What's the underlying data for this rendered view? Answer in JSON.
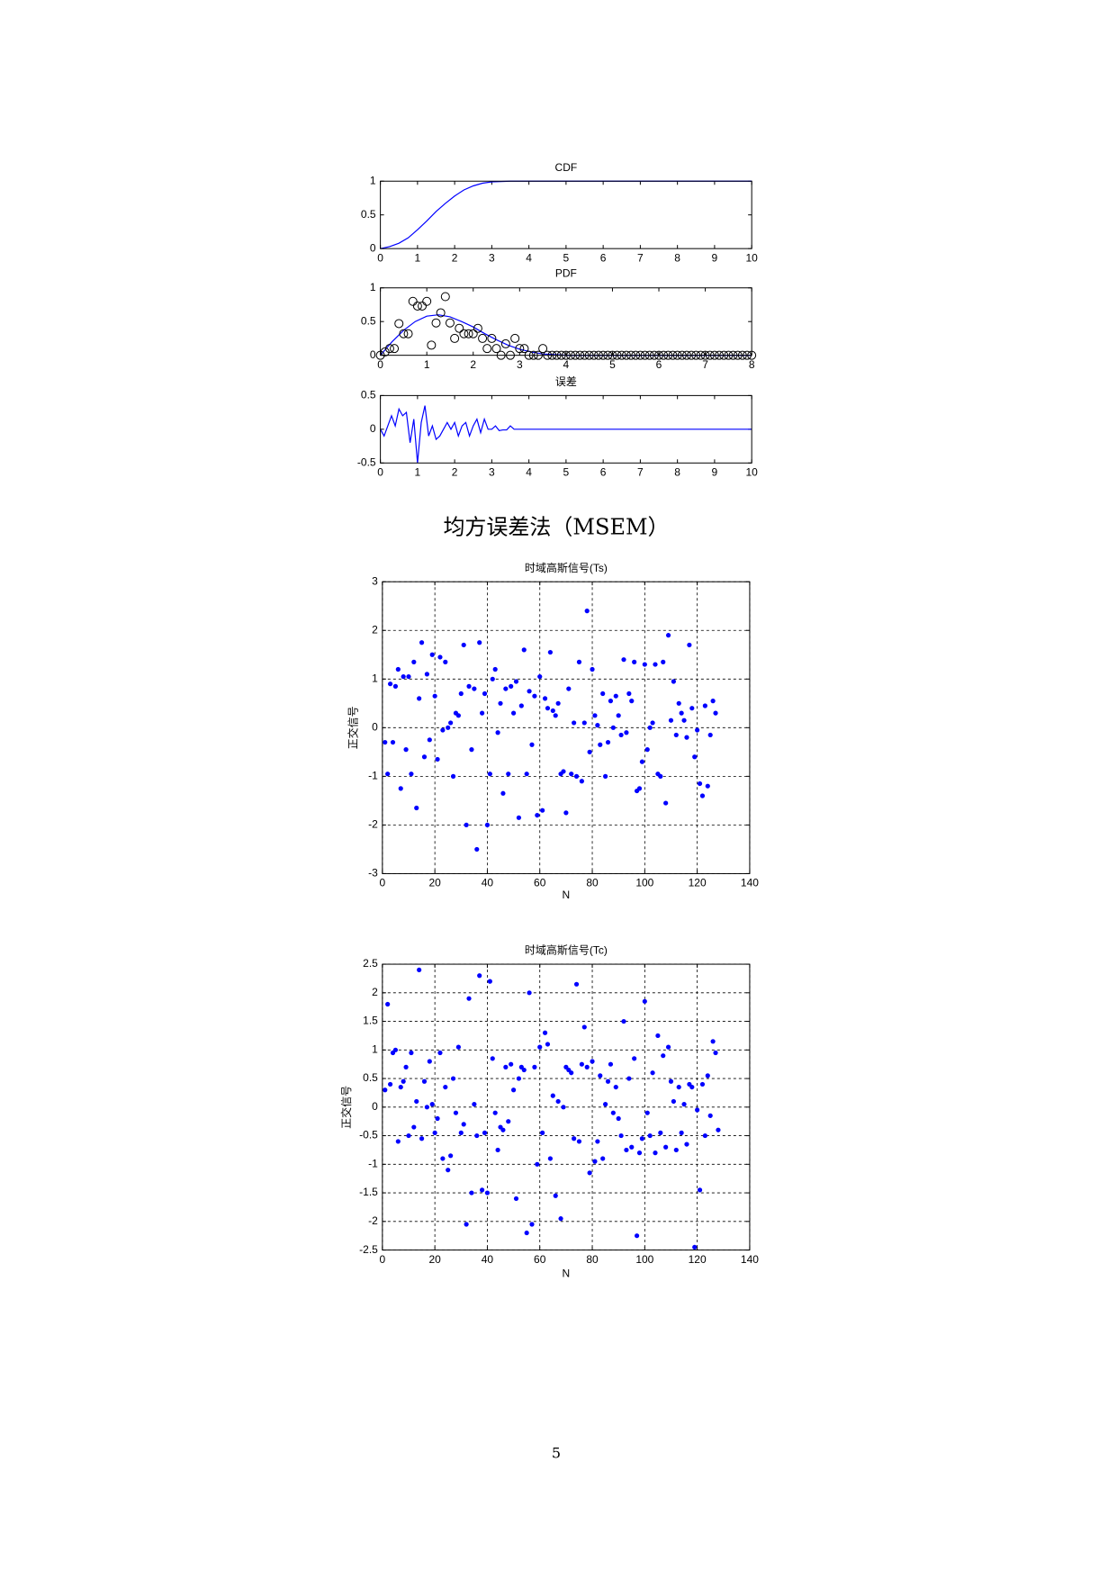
{
  "chart_data": [
    {
      "type": "line",
      "title": "CDF",
      "color": "#0000ff",
      "x": [
        0,
        0.25,
        0.5,
        0.75,
        1,
        1.25,
        1.5,
        1.75,
        2,
        2.25,
        2.5,
        2.75,
        3,
        3.5,
        10
      ],
      "values": [
        0,
        0.03,
        0.08,
        0.16,
        0.28,
        0.41,
        0.55,
        0.67,
        0.78,
        0.87,
        0.93,
        0.97,
        0.99,
        1,
        1
      ],
      "xlim": [
        0,
        10
      ],
      "xticks": [
        0,
        1,
        2,
        3,
        4,
        5,
        6,
        7,
        8,
        9,
        10
      ],
      "ylim": [
        0,
        1
      ],
      "yticks": [
        0,
        0.5,
        1
      ],
      "grid": false
    },
    {
      "type": "line",
      "title": "PDF",
      "color": "#0000ff",
      "x": [
        0,
        0.25,
        0.5,
        0.75,
        1,
        1.25,
        1.5,
        1.75,
        2,
        2.25,
        2.5,
        2.75,
        3,
        3.25,
        3.5,
        4,
        8
      ],
      "values": [
        0,
        0.2,
        0.37,
        0.5,
        0.58,
        0.6,
        0.57,
        0.5,
        0.42,
        0.32,
        0.23,
        0.15,
        0.09,
        0.05,
        0.02,
        0,
        0
      ],
      "points": {
        "color": "#000000",
        "x": [
          0,
          0.1,
          0.2,
          0.3,
          0.4,
          0.5,
          0.6,
          0.7,
          0.8,
          0.9,
          1,
          1.1,
          1.2,
          1.3,
          1.4,
          1.5,
          1.6,
          1.7,
          1.8,
          1.9,
          2,
          2.1,
          2.2,
          2.3,
          2.4,
          2.5,
          2.6,
          2.7,
          2.8,
          2.9,
          3,
          3.1,
          3.2,
          3.3,
          3.4,
          3.5,
          3.6,
          3.7,
          3.8,
          3.9,
          4,
          4.1,
          4.2,
          4.3,
          4.4,
          4.5,
          4.6,
          4.7,
          4.8,
          4.9,
          5,
          5.1,
          5.2,
          5.3,
          5.4,
          5.5,
          5.6,
          5.7,
          5.8,
          5.9,
          6,
          6.1,
          6.2,
          6.3,
          6.4,
          6.5,
          6.6,
          6.7,
          6.8,
          6.9,
          7,
          7.1,
          7.2,
          7.3,
          7.4,
          7.5,
          7.6,
          7.7,
          7.8,
          7.9,
          8
        ],
        "values": [
          0,
          0.05,
          0.1,
          0.1,
          0.47,
          0.32,
          0.32,
          0.8,
          0.73,
          0.73,
          0.8,
          0.15,
          0.48,
          0.63,
          0.87,
          0.48,
          0.25,
          0.4,
          0.32,
          0.32,
          0.32,
          0.4,
          0.25,
          0.1,
          0.25,
          0.1,
          0,
          0.17,
          0,
          0.25,
          0.1,
          0.1,
          0,
          0,
          0,
          0.1,
          0,
          0,
          0,
          0,
          0,
          0,
          0,
          0,
          0,
          0,
          0,
          0,
          0,
          0,
          0,
          0,
          0,
          0,
          0,
          0,
          0,
          0,
          0,
          0,
          0,
          0,
          0,
          0,
          0,
          0,
          0,
          0,
          0,
          0,
          0,
          0,
          0,
          0,
          0,
          0,
          0,
          0,
          0,
          0,
          0
        ]
      },
      "xlim": [
        0,
        8
      ],
      "xticks": [
        0,
        1,
        2,
        3,
        4,
        5,
        6,
        7,
        8
      ],
      "ylim": [
        0,
        1
      ],
      "yticks": [
        0,
        0.5,
        1
      ],
      "grid": false
    },
    {
      "type": "line",
      "title": "误差",
      "color": "#0000ff",
      "x": [
        0,
        0.1,
        0.2,
        0.3,
        0.4,
        0.5,
        0.6,
        0.7,
        0.8,
        0.9,
        1,
        1.1,
        1.2,
        1.3,
        1.4,
        1.5,
        1.6,
        1.7,
        1.8,
        1.9,
        2,
        2.1,
        2.2,
        2.3,
        2.4,
        2.5,
        2.6,
        2.7,
        2.8,
        2.9,
        3,
        3.1,
        3.2,
        3.3,
        3.4,
        3.5,
        3.6,
        10
      ],
      "values": [
        0,
        -0.1,
        0.05,
        0.2,
        0.05,
        0.3,
        0.2,
        0.25,
        -0.2,
        0.15,
        -0.5,
        0.1,
        0.35,
        -0.1,
        0.05,
        -0.15,
        -0.1,
        0,
        0.1,
        0,
        0.1,
        -0.1,
        0.05,
        0.1,
        -0.1,
        0.05,
        0.15,
        -0.05,
        0.15,
        0,
        0,
        0.05,
        -0.02,
        -0.01,
        -0.01,
        0.05,
        0,
        0
      ],
      "xlim": [
        0,
        10
      ],
      "xticks": [
        0,
        1,
        2,
        3,
        4,
        5,
        6,
        7,
        8,
        9,
        10
      ],
      "ylim": [
        -0.5,
        0.5
      ],
      "yticks": [
        -0.5,
        0,
        0.5
      ],
      "grid": false
    },
    {
      "type": "scatter",
      "title": "时域高斯信号(Ts)",
      "x_label": "N",
      "y_label": "正交信号",
      "color": "#0000ff",
      "x": [
        1,
        2,
        3,
        4,
        5,
        6,
        7,
        8,
        9,
        10,
        11,
        12,
        13,
        14,
        15,
        16,
        17,
        18,
        19,
        20,
        21,
        22,
        23,
        24,
        25,
        26,
        27,
        28,
        29,
        30,
        31,
        32,
        33,
        34,
        35,
        36,
        37,
        38,
        39,
        40,
        41,
        42,
        43,
        44,
        45,
        46,
        47,
        48,
        49,
        50,
        51,
        52,
        53,
        54,
        55,
        56,
        57,
        58,
        59,
        60,
        61,
        62,
        63,
        64,
        65,
        66,
        67,
        68,
        69,
        70,
        71,
        72,
        73,
        74,
        75,
        76,
        77,
        78,
        79,
        80,
        81,
        82,
        83,
        84,
        85,
        86,
        87,
        88,
        89,
        90,
        91,
        92,
        93,
        94,
        95,
        96,
        97,
        98,
        99,
        100,
        101,
        102,
        103,
        104,
        105,
        106,
        107,
        108,
        109,
        110,
        111,
        112,
        113,
        114,
        115,
        116,
        117,
        118,
        119,
        120,
        121,
        122,
        123,
        124,
        125,
        126,
        127
      ],
      "values": [
        -0.3,
        -0.95,
        0.9,
        -0.3,
        0.85,
        1.2,
        -1.25,
        1.05,
        -0.45,
        1.05,
        -0.95,
        1.35,
        -1.65,
        0.6,
        1.75,
        -0.6,
        1.1,
        -0.25,
        1.5,
        0.65,
        -0.65,
        1.45,
        -0.05,
        1.35,
        0,
        0.1,
        -1,
        0.3,
        0.25,
        0.7,
        1.7,
        -2,
        0.85,
        -0.45,
        0.8,
        -2.5,
        1.75,
        0.3,
        0.7,
        -2,
        -0.95,
        1,
        1.2,
        -0.1,
        0.5,
        -1.35,
        0.8,
        -0.95,
        0.85,
        0.3,
        0.95,
        -1.85,
        0.45,
        1.6,
        -0.95,
        0.75,
        -0.35,
        0.65,
        -1.8,
        1.05,
        -1.7,
        0.6,
        0.4,
        1.55,
        0.35,
        0.25,
        0.5,
        -0.95,
        -0.9,
        -1.75,
        0.8,
        -0.95,
        0.1,
        -1,
        1.35,
        -1.1,
        0.1,
        2.4,
        -0.5,
        1.2,
        0.25,
        0.05,
        -0.35,
        0.7,
        -1,
        -0.3,
        0.55,
        0,
        0.65,
        0.25,
        -0.15,
        1.4,
        -0.1,
        0.7,
        0.55,
        1.35,
        -1.3,
        -1.25,
        -0.7,
        1.3,
        -0.45,
        0,
        0.1,
        1.3,
        -0.95,
        -1,
        1.35,
        -1.55,
        1.9,
        0.15,
        0.95,
        -0.15,
        0.5,
        0.3,
        0.15,
        -0.2,
        1.7,
        0.4,
        -0.6,
        -0.05,
        -1.15,
        -1.4,
        0.45,
        -1.2,
        -0.15,
        0.55,
        0.3
      ],
      "xlim": [
        0,
        140
      ],
      "xticks": [
        0,
        20,
        40,
        60,
        80,
        100,
        120,
        140
      ],
      "ylim": [
        -3,
        3
      ],
      "yticks": [
        -3,
        -2,
        -1,
        0,
        1,
        2,
        3
      ],
      "grid": true
    },
    {
      "type": "scatter",
      "title": "时域高斯信号(Tc)",
      "x_label": "N",
      "y_label": "正交信号",
      "color": "#0000ff",
      "x": [
        1,
        2,
        3,
        4,
        5,
        6,
        7,
        8,
        9,
        10,
        11,
        12,
        13,
        14,
        15,
        16,
        17,
        18,
        19,
        20,
        21,
        22,
        23,
        24,
        25,
        26,
        27,
        28,
        29,
        30,
        31,
        32,
        33,
        34,
        35,
        36,
        37,
        38,
        39,
        40,
        41,
        42,
        43,
        44,
        45,
        46,
        47,
        48,
        49,
        50,
        51,
        52,
        53,
        54,
        55,
        56,
        57,
        58,
        59,
        60,
        61,
        62,
        63,
        64,
        65,
        66,
        67,
        68,
        69,
        70,
        71,
        72,
        73,
        74,
        75,
        76,
        77,
        78,
        79,
        80,
        81,
        82,
        83,
        84,
        85,
        86,
        87,
        88,
        89,
        90,
        91,
        92,
        93,
        94,
        95,
        96,
        97,
        98,
        99,
        100,
        101,
        102,
        103,
        104,
        105,
        106,
        107,
        108,
        109,
        110,
        111,
        112,
        113,
        114,
        115,
        116,
        117,
        118,
        119,
        120,
        121,
        122,
        123,
        124,
        125,
        126,
        127,
        128
      ],
      "values": [
        0.3,
        1.8,
        0.4,
        0.95,
        1,
        -0.6,
        0.35,
        0.45,
        0.7,
        -0.5,
        0.95,
        -0.35,
        0.1,
        2.4,
        -0.55,
        0.45,
        0,
        0.8,
        0.05,
        -0.45,
        -0.2,
        0.95,
        -0.9,
        0.35,
        -1.1,
        -0.85,
        0.5,
        -0.1,
        1.05,
        -0.45,
        -0.3,
        -2.05,
        1.9,
        -1.5,
        0.05,
        -0.5,
        2.3,
        -1.45,
        -0.45,
        -1.5,
        2.2,
        0.85,
        -0.1,
        -0.75,
        -0.35,
        -0.4,
        0.7,
        -0.25,
        0.75,
        0.3,
        -1.6,
        0.5,
        0.7,
        0.65,
        -2.2,
        2,
        -2.05,
        0.7,
        -1,
        1.05,
        -0.45,
        1.3,
        1.1,
        -0.9,
        0.2,
        -1.55,
        0.1,
        -1.95,
        0,
        0.7,
        0.65,
        0.6,
        -0.55,
        2.15,
        -0.6,
        0.75,
        1.4,
        0.7,
        -1.15,
        0.8,
        -0.95,
        -0.6,
        0.55,
        -0.9,
        0.05,
        0.45,
        0.75,
        -0.1,
        0.35,
        -0.2,
        -0.5,
        1.5,
        -0.75,
        0.5,
        -0.7,
        0.85,
        -2.25,
        -0.8,
        -0.55,
        1.85,
        -0.1,
        -0.5,
        0.6,
        -0.8,
        1.25,
        -0.45,
        0.9,
        -0.7,
        1.05,
        0.45,
        0.1,
        -0.75,
        0.35,
        -0.45,
        0.05,
        -0.65,
        0.4,
        0.35,
        -2.45,
        -0.05,
        -1.45,
        0.4,
        -0.5,
        0.55,
        -0.15,
        1.15,
        0.95,
        -0.4
      ],
      "xlim": [
        0,
        140
      ],
      "xticks": [
        0,
        20,
        40,
        60,
        80,
        100,
        120,
        140
      ],
      "ylim": [
        -2.5,
        2.5
      ],
      "yticks": [
        -2.5,
        -2,
        -1.5,
        -1,
        -0.5,
        0,
        0.5,
        1,
        1.5,
        2,
        2.5
      ],
      "grid": true
    }
  ],
  "caption": "均方误差法（MSEM）",
  "page_number": "5"
}
